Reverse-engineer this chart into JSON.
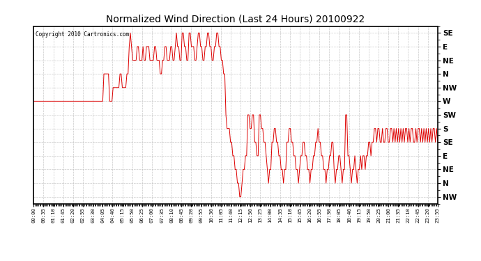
{
  "title": "Normalized Wind Direction (Last 24 Hours) 20100922",
  "copyright_text": "Copyright 2010 Cartronics.com",
  "background_color": "#ffffff",
  "plot_bg_color": "#ffffff",
  "grid_color": "#bbbbbb",
  "line_color": "#dd0000",
  "ytick_labels": [
    "SE",
    "E",
    "NE",
    "N",
    "NW",
    "W",
    "SW",
    "S",
    "SE",
    "E",
    "NE",
    "N",
    "NW"
  ],
  "ytick_values": [
    13,
    12,
    11,
    10,
    9,
    8,
    7,
    6,
    5,
    4,
    3,
    2,
    1
  ],
  "ylim": [
    0.5,
    13.5
  ],
  "xtick_labels": [
    "00:00",
    "00:35",
    "01:10",
    "01:45",
    "02:20",
    "02:55",
    "03:30",
    "04:05",
    "04:40",
    "05:15",
    "05:50",
    "06:25",
    "07:00",
    "07:35",
    "08:10",
    "08:45",
    "09:20",
    "09:55",
    "10:30",
    "11:05",
    "11:40",
    "12:15",
    "12:50",
    "13:25",
    "14:00",
    "14:35",
    "15:10",
    "15:45",
    "16:20",
    "16:55",
    "17:30",
    "18:05",
    "18:40",
    "19:15",
    "19:50",
    "20:25",
    "21:00",
    "21:35",
    "22:10",
    "22:45",
    "23:20",
    "23:55"
  ],
  "wind_data_x": [
    0,
    1,
    2,
    3,
    4,
    5,
    6,
    7,
    8,
    9,
    10,
    11,
    12,
    13,
    14,
    15,
    16,
    17,
    18,
    19,
    20,
    21,
    22,
    23,
    24,
    25,
    26,
    27,
    28,
    29,
    30,
    31,
    32,
    33,
    34,
    35,
    36,
    37,
    38,
    39,
    40,
    41,
    42,
    43,
    44,
    45,
    46,
    47,
    48,
    49,
    50,
    51,
    52,
    53,
    54,
    55,
    56,
    57,
    58,
    59,
    60,
    61,
    62,
    63,
    64,
    65,
    66,
    67,
    68,
    69,
    70,
    71,
    72,
    73,
    74,
    75,
    76,
    77,
    78,
    79,
    80,
    81,
    82,
    83,
    84,
    85,
    86,
    87,
    88,
    89,
    90,
    91,
    92,
    93,
    94,
    95,
    96,
    97,
    98,
    99,
    100,
    101,
    102,
    103,
    104,
    105,
    106,
    107,
    108,
    109,
    110,
    111,
    112,
    113,
    114,
    115,
    116,
    117,
    118,
    119,
    120,
    121,
    122,
    123,
    124,
    125,
    126,
    127,
    128,
    129,
    130,
    131,
    132,
    133,
    134,
    135,
    136,
    137,
    138,
    139,
    140,
    141,
    142,
    143,
    144,
    145,
    146,
    147,
    148,
    149,
    150,
    151,
    152,
    153,
    154,
    155,
    156,
    157,
    158,
    159,
    160,
    161,
    162,
    163,
    164,
    165,
    166,
    167,
    168,
    169,
    170,
    171,
    172,
    173,
    174,
    175,
    176,
    177,
    178,
    179,
    180,
    181,
    182,
    183,
    184,
    185,
    186,
    187,
    188,
    189,
    190,
    191,
    192,
    193,
    194,
    195,
    196,
    197,
    198,
    199,
    200,
    201,
    202,
    203,
    204,
    205,
    206,
    207,
    208,
    209,
    210,
    211,
    212,
    213,
    214,
    215,
    216,
    217,
    218,
    219,
    220,
    221,
    222,
    223,
    224,
    225,
    226,
    227,
    228,
    229,
    230,
    231,
    232,
    233,
    234,
    235,
    236,
    237,
    238,
    239,
    240,
    241,
    242,
    243,
    244,
    245,
    246,
    247,
    248,
    249,
    250,
    251,
    252,
    253,
    254,
    255,
    256,
    257,
    258,
    259,
    260,
    261,
    262,
    263,
    264,
    265,
    266,
    267,
    268,
    269,
    270,
    271,
    272,
    273,
    274,
    275,
    276,
    277,
    278,
    279,
    280,
    281,
    282,
    283,
    284,
    285,
    286,
    287,
    288,
    289,
    290,
    291,
    292,
    293,
    294,
    295,
    296,
    297,
    298,
    299,
    300,
    301,
    302,
    303,
    304,
    305,
    306,
    307,
    308,
    309,
    310,
    311,
    312,
    313,
    314,
    315,
    316,
    317,
    318,
    319,
    320,
    321,
    322,
    323,
    324,
    325,
    326,
    327,
    328,
    329,
    330,
    331,
    332,
    333,
    334,
    335,
    336,
    337,
    338,
    339,
    340,
    341,
    342,
    343,
    344,
    345,
    346,
    347,
    348,
    349,
    350,
    351
  ],
  "wind_data_y": [
    8,
    8,
    8,
    8,
    8,
    8,
    8,
    8,
    8,
    8,
    8,
    8,
    8,
    8,
    8,
    8,
    8,
    8,
    8,
    8,
    8,
    8,
    8,
    8,
    8,
    8,
    8,
    8,
    8,
    8,
    8,
    8,
    8,
    8,
    8,
    8,
    8,
    8,
    8,
    8,
    8,
    8,
    8,
    8,
    8,
    8,
    8,
    8,
    8,
    8,
    8,
    8,
    8,
    8,
    8,
    8,
    8,
    8,
    8,
    8,
    8,
    10,
    10,
    10,
    10,
    10,
    8,
    8,
    8,
    9,
    9,
    9,
    9,
    9,
    9,
    10,
    10,
    9,
    9,
    9,
    9,
    10,
    10,
    12,
    13,
    12,
    11,
    11,
    11,
    11,
    12,
    12,
    11,
    11,
    11,
    12,
    11,
    11,
    12,
    12,
    12,
    11,
    11,
    11,
    11,
    12,
    12,
    11,
    11,
    11,
    10,
    10,
    11,
    11,
    12,
    12,
    11,
    11,
    11,
    12,
    12,
    11,
    11,
    12,
    13,
    12,
    12,
    11,
    11,
    13,
    13,
    12,
    12,
    11,
    11,
    13,
    13,
    12,
    12,
    12,
    11,
    11,
    12,
    13,
    13,
    12,
    12,
    11,
    11,
    12,
    12,
    13,
    13,
    12,
    12,
    11,
    11,
    12,
    12,
    13,
    13,
    12,
    12,
    11,
    11,
    10,
    10,
    7,
    6,
    6,
    6,
    5,
    5,
    4,
    4,
    3,
    3,
    2,
    2,
    1,
    1,
    2,
    3,
    3,
    4,
    4,
    7,
    7,
    6,
    6,
    7,
    7,
    5,
    5,
    4,
    4,
    7,
    7,
    6,
    6,
    5,
    5,
    4,
    3,
    2,
    3,
    3,
    5,
    5,
    6,
    6,
    5,
    5,
    4,
    4,
    3,
    3,
    2,
    3,
    3,
    5,
    5,
    6,
    6,
    5,
    5,
    4,
    4,
    3,
    3,
    2,
    3,
    4,
    4,
    5,
    5,
    4,
    4,
    3,
    3,
    2,
    3,
    3,
    4,
    4,
    5,
    5,
    6,
    5,
    5,
    4,
    4,
    3,
    3,
    2,
    3,
    3,
    4,
    4,
    5,
    5,
    3,
    2,
    3,
    3,
    4,
    4,
    3,
    2,
    3,
    3,
    7,
    7,
    4,
    4,
    3,
    2,
    3,
    3,
    4,
    3,
    2,
    3,
    3,
    4,
    3,
    4,
    4,
    3,
    4,
    4,
    5,
    5,
    4,
    5,
    5,
    6,
    6,
    5,
    6,
    6,
    5,
    5,
    6,
    5,
    5,
    6,
    6,
    5,
    5,
    6,
    6,
    5,
    6,
    5,
    6,
    5,
    6,
    5,
    6,
    5,
    6,
    5,
    6,
    6,
    5,
    6,
    5,
    6,
    6,
    5,
    5,
    6,
    5,
    6,
    6,
    5,
    6,
    5,
    6,
    5,
    6,
    5,
    6,
    5,
    6,
    5,
    6,
    6,
    5,
    6,
    5
  ]
}
